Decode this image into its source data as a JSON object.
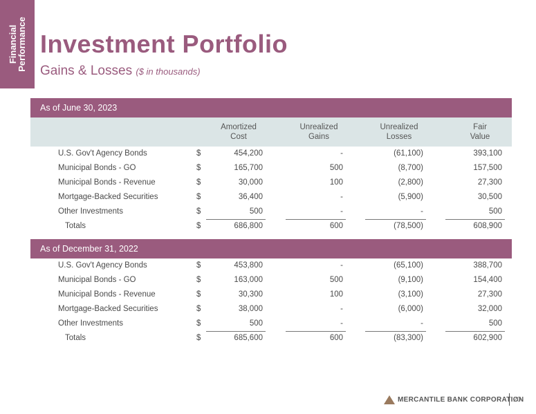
{
  "side_tab": {
    "line1": "Financial",
    "line2": "Performance"
  },
  "header": {
    "title": "Investment Portfolio",
    "subtitle": "Gains & Losses",
    "subtitle_note": "($ in thousands)"
  },
  "columns": {
    "amortized_cost": [
      "Amortized",
      "Cost"
    ],
    "unrealized_gains": [
      "Unrealized",
      "Gains"
    ],
    "unrealized_losses": [
      "Unrealized",
      "Losses"
    ],
    "fair_value": [
      "Fair",
      "Value"
    ]
  },
  "sections": [
    {
      "title": "As of June 30, 2023",
      "rows": [
        {
          "label": "U.S. Gov't Agency Bonds",
          "dollar": "$",
          "cost": "454,200",
          "gains": "-",
          "losses": "(61,100)",
          "fair": "393,100"
        },
        {
          "label": "Municipal Bonds - GO",
          "dollar": "$",
          "cost": "165,700",
          "gains": "500",
          "losses": "(8,700)",
          "fair": "157,500"
        },
        {
          "label": "Municipal Bonds - Revenue",
          "dollar": "$",
          "cost": "30,000",
          "gains": "100",
          "losses": "(2,800)",
          "fair": "27,300"
        },
        {
          "label": "Mortgage-Backed Securities",
          "dollar": "$",
          "cost": "36,400",
          "gains": "-",
          "losses": "(5,900)",
          "fair": "30,500"
        },
        {
          "label": "Other Investments",
          "dollar": "$",
          "cost": "500",
          "gains": "-",
          "losses": "-",
          "fair": "500"
        }
      ],
      "total": {
        "label": "Totals",
        "dollar": "$",
        "cost": "686,800",
        "gains": "600",
        "losses": "(78,500)",
        "fair": "608,900"
      }
    },
    {
      "title": "As of December 31, 2022",
      "rows": [
        {
          "label": "U.S. Gov't Agency Bonds",
          "dollar": "$",
          "cost": "453,800",
          "gains": "-",
          "losses": "(65,100)",
          "fair": "388,700"
        },
        {
          "label": "Municipal Bonds - GO",
          "dollar": "$",
          "cost": "163,000",
          "gains": "500",
          "losses": "(9,100)",
          "fair": "154,400"
        },
        {
          "label": "Municipal Bonds - Revenue",
          "dollar": "$",
          "cost": "30,300",
          "gains": "100",
          "losses": "(3,100)",
          "fair": "27,300"
        },
        {
          "label": "Mortgage-Backed Securities",
          "dollar": "$",
          "cost": "38,000",
          "gains": "-",
          "losses": "(6,000)",
          "fair": "32,000"
        },
        {
          "label": "Other Investments",
          "dollar": "$",
          "cost": "500",
          "gains": "-",
          "losses": "-",
          "fair": "500"
        }
      ],
      "total": {
        "label": "Totals",
        "dollar": "$",
        "cost": "685,600",
        "gains": "600",
        "losses": "(83,300)",
        "fair": "602,900"
      }
    }
  ],
  "footer": {
    "company": "MERCANTILE BANK CORPORATION",
    "page_number": "20"
  },
  "colors": {
    "accent": "#9a5b7e",
    "header_band": "#dbe5e6",
    "logo": "#9a7a5e"
  }
}
